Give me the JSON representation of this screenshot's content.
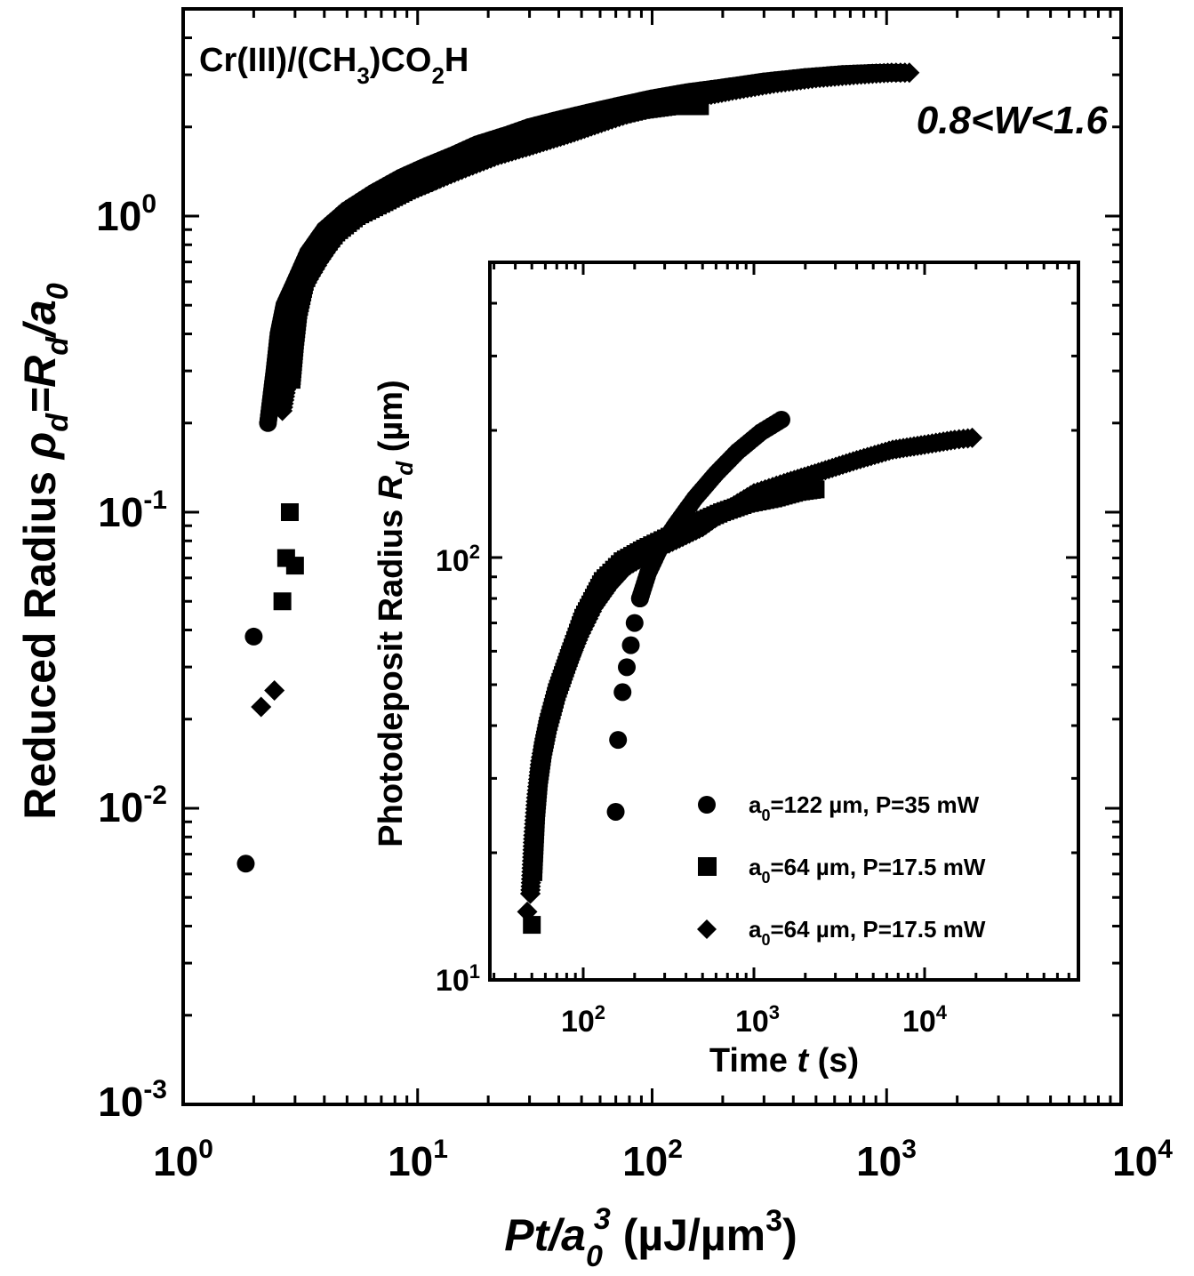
{
  "chart_data": [
    {
      "type": "scatter",
      "title": "",
      "x_scale": "log",
      "y_scale": "log",
      "xlim": [
        1,
        10000
      ],
      "ylim": [
        0.001,
        5
      ],
      "xlabel": {
        "main": "Pt/a",
        "sub": "0",
        "sup": "3",
        "units": " (µJ/µm",
        "units_sup": "3",
        "units_end": ")"
      },
      "ylabel": {
        "prefix": "Reduced Radius ",
        "rho": "ρ",
        "rho_sub": "d",
        "eq": "=R",
        "r_sub": "d",
        "slash": "/a",
        "a_sub": "0"
      },
      "x_ticks": [
        {
          "base": "10",
          "exp": "0"
        },
        {
          "base": "10",
          "exp": "1"
        },
        {
          "base": "10",
          "exp": "2"
        },
        {
          "base": "10",
          "exp": "3"
        },
        {
          "base": "10",
          "exp": "4"
        }
      ],
      "y_ticks": [
        {
          "base": "10",
          "exp": "-3"
        },
        {
          "base": "10",
          "exp": "-2"
        },
        {
          "base": "10",
          "exp": "-1"
        },
        {
          "base": "10",
          "exp": "0"
        }
      ],
      "annotations": {
        "system": {
          "a": "Cr(III)/(CH",
          "sub1": "3",
          "b": ")CO",
          "sub2": "2",
          "c": "H"
        },
        "range": "0.8<W<1.6"
      },
      "series": [
        {
          "marker": "circle",
          "points": [
            [
              1.85,
              0.0065
            ],
            [
              2.0,
              0.038
            ],
            [
              2.3,
              0.2
            ],
            [
              2.45,
              0.3
            ],
            [
              2.55,
              0.4
            ],
            [
              2.7,
              0.5
            ],
            [
              3.0,
              0.6
            ],
            [
              3.4,
              0.75
            ],
            [
              4.0,
              0.9
            ],
            [
              5.0,
              1.05
            ],
            [
              6.5,
              1.2
            ],
            [
              8.5,
              1.35
            ],
            [
              11,
              1.48
            ],
            [
              14,
              1.6
            ],
            [
              18,
              1.75
            ],
            [
              24,
              1.88
            ],
            [
              30,
              2.0
            ],
            [
              40,
              2.12
            ],
            [
              55,
              2.25
            ],
            [
              70,
              2.35
            ],
            [
              100,
              2.5
            ],
            [
              140,
              2.62
            ],
            [
              200,
              2.72
            ],
            [
              300,
              2.85
            ],
            [
              450,
              2.95
            ],
            [
              650,
              3.02
            ],
            [
              900,
              3.05
            ],
            [
              1150,
              3.05
            ]
          ]
        },
        {
          "marker": "square",
          "points": [
            [
              2.65,
              0.05
            ],
            [
              2.75,
              0.07
            ],
            [
              2.85,
              0.1
            ],
            [
              3.0,
              0.066
            ],
            [
              2.9,
              0.28
            ],
            [
              3.0,
              0.38
            ],
            [
              3.1,
              0.48
            ],
            [
              3.3,
              0.6
            ],
            [
              3.7,
              0.73
            ],
            [
              4.5,
              0.88
            ],
            [
              5.5,
              1.0
            ],
            [
              7,
              1.1
            ],
            [
              9,
              1.22
            ],
            [
              12,
              1.35
            ],
            [
              16,
              1.5
            ],
            [
              22,
              1.65
            ],
            [
              30,
              1.8
            ],
            [
              45,
              2.0
            ],
            [
              65,
              2.15
            ],
            [
              90,
              2.28
            ],
            [
              120,
              2.35
            ],
            [
              160,
              2.35
            ]
          ]
        },
        {
          "marker": "diamond",
          "points": [
            [
              2.15,
              0.022
            ],
            [
              2.45,
              0.025
            ],
            [
              2.65,
              0.22
            ],
            [
              2.75,
              0.26
            ],
            [
              2.8,
              0.3
            ],
            [
              2.85,
              0.37
            ],
            [
              3.0,
              0.45
            ],
            [
              3.3,
              0.58
            ],
            [
              3.8,
              0.7
            ],
            [
              4.5,
              0.85
            ],
            [
              5.5,
              0.98
            ],
            [
              7,
              1.1
            ],
            [
              9,
              1.2
            ],
            [
              12,
              1.32
            ],
            [
              16,
              1.45
            ],
            [
              22,
              1.6
            ],
            [
              30,
              1.72
            ],
            [
              45,
              1.9
            ],
            [
              65,
              2.1
            ],
            [
              100,
              2.35
            ],
            [
              150,
              2.5
            ],
            [
              220,
              2.65
            ],
            [
              330,
              2.8
            ],
            [
              500,
              2.92
            ],
            [
              750,
              3.0
            ],
            [
              1050,
              3.05
            ],
            [
              1250,
              3.05
            ]
          ]
        }
      ]
    },
    {
      "type": "scatter",
      "title": "",
      "inset": true,
      "x_scale": "log",
      "y_scale": "log",
      "xlim": [
        30,
        70000
      ],
      "ylim": [
        10,
        500
      ],
      "xlabel": {
        "main": "Time ",
        "italic": "t",
        "units": " (s)"
      },
      "ylabel": {
        "prefix": "Photodeposit Radius ",
        "r": "R",
        "r_sub": "d",
        "units": " (µm)"
      },
      "x_ticks": [
        {
          "base": "10",
          "exp": "2"
        },
        {
          "base": "10",
          "exp": "3"
        },
        {
          "base": "10",
          "exp": "4"
        }
      ],
      "y_ticks": [
        {
          "base": "10",
          "exp": "1"
        },
        {
          "base": "10",
          "exp": "2"
        }
      ],
      "legend": {
        "placement": "lower-right",
        "entries": [
          {
            "marker": "circle",
            "a": "a",
            "sub": "0",
            "rest": "=122 µm, P=35 mW"
          },
          {
            "marker": "square",
            "a": "a",
            "sub": "0",
            "rest": "=64 µm, P=17.5 mW"
          },
          {
            "marker": "diamond",
            "a": "a",
            "sub": "0",
            "rest": "=64 µm, P=17.5 mW"
          }
        ]
      },
      "series": [
        {
          "marker": "circle",
          "points": [
            [
              155,
              25
            ],
            [
              160,
              37
            ],
            [
              170,
              48
            ],
            [
              180,
              55
            ],
            [
              190,
              62
            ],
            [
              200,
              70
            ],
            [
              215,
              80
            ],
            [
              240,
              92
            ],
            [
              280,
              105
            ],
            [
              350,
              120
            ],
            [
              450,
              138
            ],
            [
              600,
              158
            ],
            [
              800,
              178
            ],
            [
              1100,
              198
            ],
            [
              1450,
              212
            ]
          ]
        },
        {
          "marker": "square",
          "points": [
            [
              50,
              13.5
            ],
            [
              51,
              18
            ],
            [
              53,
              25
            ],
            [
              55,
              30
            ],
            [
              58,
              35
            ],
            [
              62,
              40
            ],
            [
              70,
              48
            ],
            [
              85,
              60
            ],
            [
              100,
              72
            ],
            [
              130,
              88
            ],
            [
              170,
              98
            ],
            [
              230,
              105
            ],
            [
              320,
              112
            ],
            [
              450,
              120
            ],
            [
              650,
              128
            ],
            [
              900,
              134
            ],
            [
              1300,
              138
            ],
            [
              1800,
              143
            ],
            [
              2300,
              145
            ]
          ]
        },
        {
          "marker": "diamond",
          "points": [
            [
              47,
              14.5
            ],
            [
              49,
              16
            ],
            [
              51,
              22
            ],
            [
              53,
              27
            ],
            [
              56,
              33
            ],
            [
              60,
              38
            ],
            [
              68,
              46
            ],
            [
              80,
              55
            ],
            [
              95,
              65
            ],
            [
              115,
              76
            ],
            [
              140,
              85
            ],
            [
              180,
              95
            ],
            [
              250,
              103
            ],
            [
              350,
              110
            ],
            [
              500,
              118
            ],
            [
              700,
              130
            ],
            [
              1000,
              142
            ],
            [
              1500,
              150
            ],
            [
              2500,
              160
            ],
            [
              4000,
              170
            ],
            [
              6500,
              180
            ],
            [
              10000,
              185
            ],
            [
              15000,
              190
            ],
            [
              19000,
              192
            ]
          ]
        }
      ]
    }
  ]
}
